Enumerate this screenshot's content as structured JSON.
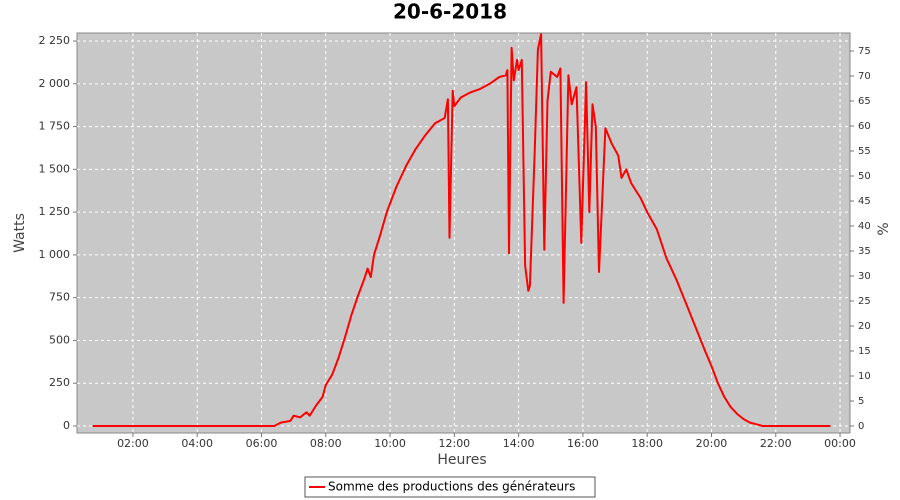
{
  "chart_data": {
    "type": "line",
    "title": "20-6-2018",
    "x_label": "Heures",
    "y_label": "Watts",
    "y2_label": "%",
    "x": [
      0.75,
      1,
      2,
      3,
      4,
      5,
      6,
      6.4,
      6.6,
      6.9,
      7.0,
      7.2,
      7.4,
      7.5,
      7.7,
      7.9,
      8.0,
      8.2,
      8.4,
      8.6,
      8.8,
      9.0,
      9.2,
      9.3,
      9.4,
      9.5,
      9.7,
      9.9,
      10.2,
      10.5,
      10.8,
      11.1,
      11.4,
      11.7,
      11.8,
      11.85,
      11.95,
      12.0,
      12.2,
      12.5,
      12.8,
      13.1,
      13.4,
      13.6,
      13.65,
      13.7,
      13.78,
      13.85,
      13.95,
      14.0,
      14.1,
      14.2,
      14.3,
      14.35,
      14.5,
      14.6,
      14.7,
      14.8,
      14.9,
      15.0,
      15.2,
      15.3,
      15.4,
      15.55,
      15.65,
      15.8,
      15.95,
      16.1,
      16.2,
      16.3,
      16.4,
      16.5,
      16.7,
      16.9,
      17.1,
      17.2,
      17.35,
      17.5,
      17.8,
      18.0,
      18.3,
      18.6,
      18.9,
      19.2,
      19.5,
      19.8,
      20.0,
      20.2,
      20.4,
      20.6,
      20.8,
      21.0,
      21.2,
      21.4,
      21.6,
      22,
      23,
      23.7
    ],
    "series": [
      {
        "name": "Somme des productions des  générateurs",
        "color": "#ff0000",
        "values": [
          0,
          0,
          0,
          0,
          0,
          0,
          0,
          0,
          20,
          30,
          60,
          50,
          80,
          60,
          120,
          170,
          240,
          300,
          400,
          520,
          650,
          760,
          860,
          920,
          870,
          1000,
          1120,
          1250,
          1400,
          1520,
          1620,
          1700,
          1770,
          1800,
          1910,
          1100,
          1960,
          1870,
          1920,
          1950,
          1970,
          2000,
          2040,
          2050,
          2080,
          1010,
          2210,
          2020,
          2140,
          2080,
          2140,
          940,
          790,
          820,
          1600,
          2200,
          2290,
          1030,
          1900,
          2070,
          2040,
          2090,
          720,
          2050,
          1880,
          1980,
          1070,
          2010,
          1250,
          1880,
          1750,
          900,
          1740,
          1650,
          1580,
          1450,
          1500,
          1420,
          1330,
          1250,
          1150,
          980,
          860,
          720,
          580,
          440,
          350,
          250,
          170,
          110,
          70,
          40,
          20,
          10,
          0,
          0,
          0,
          0
        ]
      }
    ],
    "xlim": [
      0.26,
      24.31
    ],
    "xticks": [
      {
        "value": 2,
        "label": "02:00"
      },
      {
        "value": 4,
        "label": "04:00"
      },
      {
        "value": 6,
        "label": "06:00"
      },
      {
        "value": 8,
        "label": "08:00"
      },
      {
        "value": 10,
        "label": "10:00"
      },
      {
        "value": 12,
        "label": "12:00"
      },
      {
        "value": 14,
        "label": "14:00"
      },
      {
        "value": 16,
        "label": "16:00"
      },
      {
        "value": 18,
        "label": "18:00"
      },
      {
        "value": 20,
        "label": "20:00"
      },
      {
        "value": 22,
        "label": "22:00"
      },
      {
        "value": 24,
        "label": "00:00"
      }
    ],
    "ylim": [
      -41,
      2297
    ],
    "yticks": [
      0,
      250,
      500,
      750,
      {
        "value": 1000,
        "label": "1 000"
      },
      {
        "value": 1250,
        "label": "1 250"
      },
      {
        "value": 1500,
        "label": "1 500"
      },
      {
        "value": 1750,
        "label": "1 750"
      },
      {
        "value": 2000,
        "label": "2 000"
      },
      {
        "value": 2250,
        "label": "2 250"
      }
    ],
    "y2lim": [
      -1.4,
      78.6
    ],
    "y2ticks": [
      0,
      5,
      10,
      15,
      20,
      25,
      30,
      35,
      40,
      45,
      50,
      55,
      60,
      65,
      70,
      75
    ],
    "grid": true,
    "legend": "bottom"
  }
}
